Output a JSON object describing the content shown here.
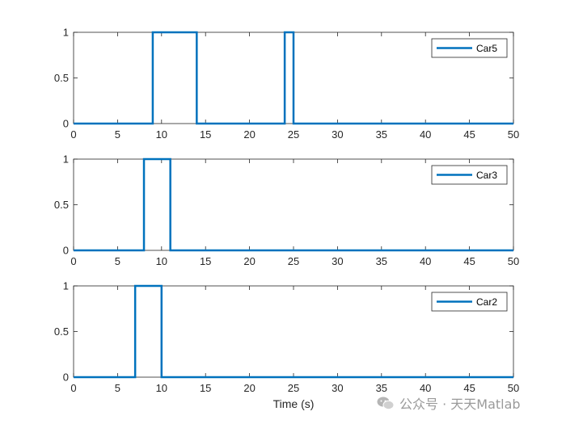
{
  "chart_data": [
    {
      "type": "line",
      "series": [
        {
          "name": "Car5",
          "x": [
            0,
            9,
            9,
            14,
            14,
            24,
            24,
            25,
            25,
            50
          ],
          "y": [
            0,
            0,
            1,
            1,
            0,
            0,
            1,
            1,
            0,
            0
          ]
        }
      ],
      "xlim": [
        0,
        50
      ],
      "ylim": [
        0,
        1
      ],
      "xticks": [
        0,
        5,
        10,
        15,
        20,
        25,
        30,
        35,
        40,
        45,
        50
      ],
      "yticks": [
        0,
        0.5,
        1
      ],
      "xlabel": "",
      "ylabel": "",
      "grid": false,
      "legend_position": "top-right",
      "line_color": "#0072BD"
    },
    {
      "type": "line",
      "series": [
        {
          "name": "Car3",
          "x": [
            0,
            8,
            8,
            11,
            11,
            50
          ],
          "y": [
            0,
            0,
            1,
            1,
            0,
            0
          ]
        }
      ],
      "xlim": [
        0,
        50
      ],
      "ylim": [
        0,
        1
      ],
      "xticks": [
        0,
        5,
        10,
        15,
        20,
        25,
        30,
        35,
        40,
        45,
        50
      ],
      "yticks": [
        0,
        0.5,
        1
      ],
      "xlabel": "",
      "ylabel": "",
      "grid": false,
      "legend_position": "top-right",
      "line_color": "#0072BD"
    },
    {
      "type": "line",
      "series": [
        {
          "name": "Car2",
          "x": [
            0,
            7,
            7,
            10,
            10,
            50
          ],
          "y": [
            0,
            0,
            1,
            1,
            0,
            0
          ]
        }
      ],
      "xlim": [
        0,
        50
      ],
      "ylim": [
        0,
        1
      ],
      "xticks": [
        0,
        5,
        10,
        15,
        20,
        25,
        30,
        35,
        40,
        45,
        50
      ],
      "yticks": [
        0,
        0.5,
        1
      ],
      "xlabel": "Time (s)",
      "ylabel": "",
      "grid": false,
      "legend_position": "top-right",
      "line_color": "#0072BD"
    }
  ],
  "watermark": {
    "text": "公众号 · 天天Matlab",
    "logo_icon": "wechat-icon"
  }
}
